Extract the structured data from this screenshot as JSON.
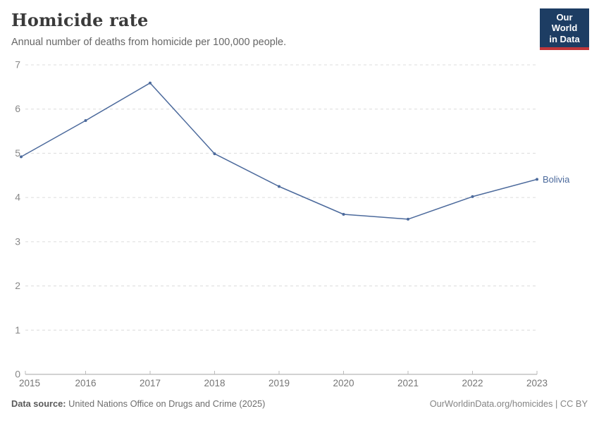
{
  "header": {
    "title": "Homicide rate",
    "subtitle": "Annual number of deaths from homicide per 100,000 people.",
    "logo": {
      "line1": "Our World",
      "line2": "in Data"
    }
  },
  "chart_data": {
    "type": "line",
    "title": "Homicide rate",
    "subtitle": "Annual number of deaths from homicide per 100,000 people.",
    "x": [
      2015,
      2016,
      2017,
      2018,
      2019,
      2020,
      2021,
      2022,
      2023
    ],
    "series": [
      {
        "name": "Bolivia",
        "color": "#4c6a9c",
        "values": [
          4.92,
          5.74,
          6.59,
          4.99,
          4.25,
          3.62,
          3.51,
          4.02,
          4.41
        ]
      }
    ],
    "ylim": [
      0,
      7
    ],
    "yticks": [
      0,
      1,
      2,
      3,
      4,
      5,
      6,
      7
    ],
    "grid": true,
    "grid_style": "dashed-horizontal",
    "legend_position": "end-of-line-label"
  },
  "footer": {
    "source_label": "Data source:",
    "source_text": "United Nations Office on Drugs and Crime (2025)",
    "credit": "OurWorldinData.org/homicides | CC BY"
  },
  "colors": {
    "accent_line": "#4c6a9c",
    "logo_bg": "#1d3d63",
    "logo_underline": "#c03639",
    "grid": "#dcdcdc",
    "axis": "#a5a5a5",
    "tick_label": "#888888",
    "x_tick_label": "#757575",
    "title_text": "#3a3a3a",
    "subtitle_text": "#666666"
  }
}
